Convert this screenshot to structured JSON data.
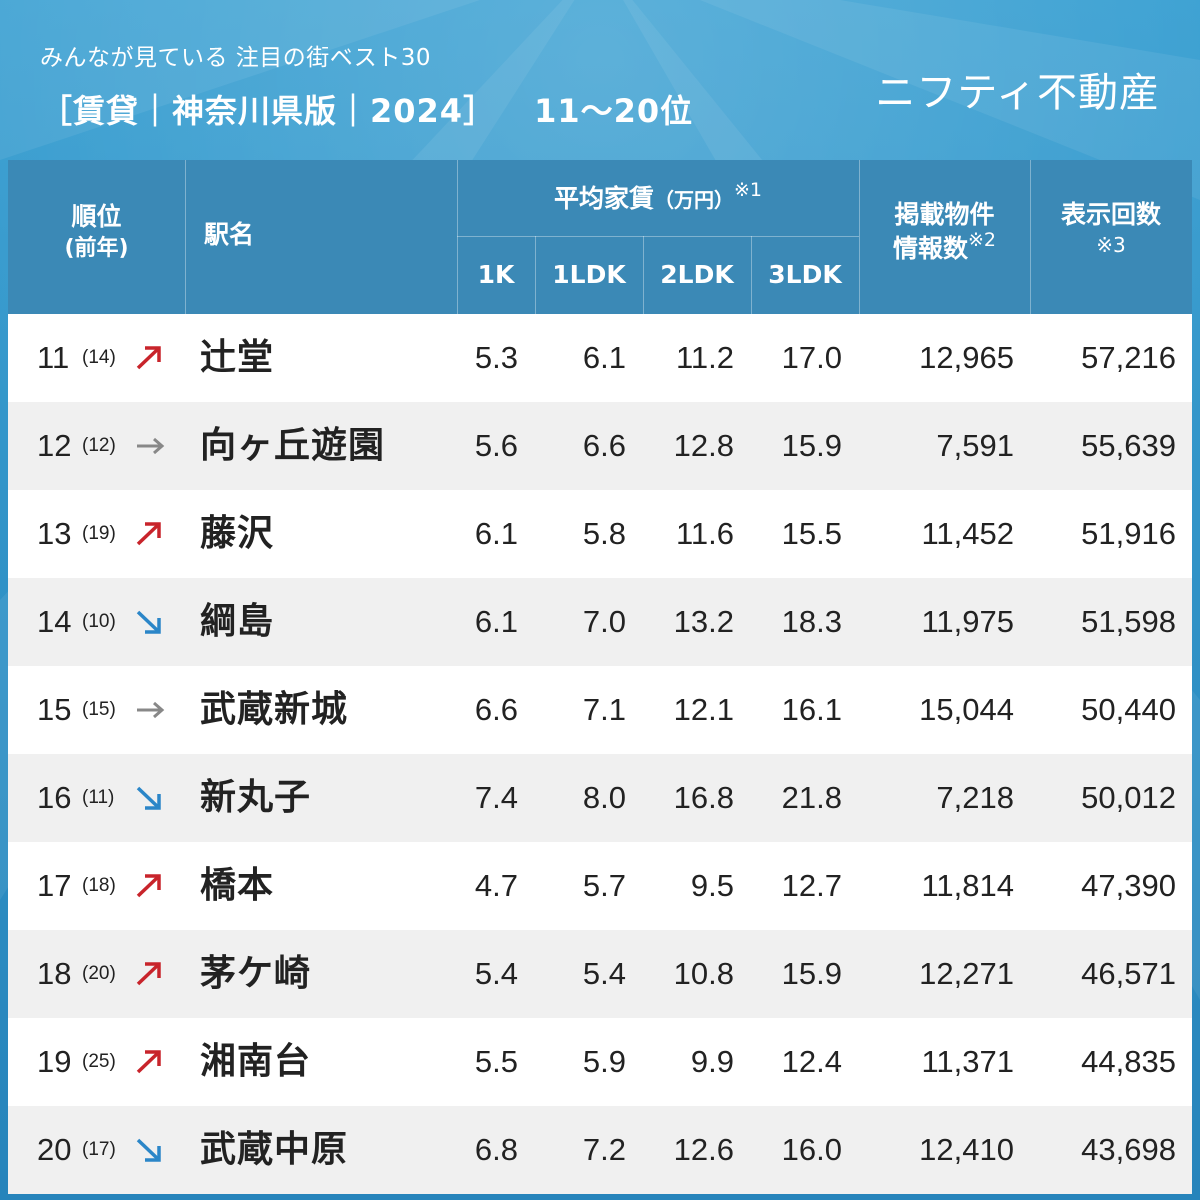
{
  "header": {
    "subtitle": "みんなが見ている 注目の街ベスト30",
    "title": "［賃貸｜神奈川県版｜2024］",
    "rank_range": "11〜20位",
    "brand": "ニフティ不動産"
  },
  "table": {
    "headers": {
      "rank": "順位",
      "rank_prev": "(前年)",
      "station": "駅名",
      "rent_title": "平均家賃",
      "rent_unit": "（万円）",
      "rent_note": "※1",
      "rent_cols": [
        "1K",
        "1LDK",
        "2LDK",
        "3LDK"
      ],
      "listings_line1": "掲載物件",
      "listings_line2": "情報数",
      "listings_note": "※2",
      "views": "表示回数",
      "views_note": "※3"
    },
    "rows": [
      {
        "rank": "11",
        "prev": "(14)",
        "trend": "up",
        "station": "辻堂",
        "k1": "5.3",
        "ldk1": "6.1",
        "ldk2": "11.2",
        "ldk3": "17.0",
        "listings": "12,965",
        "views": "57,216"
      },
      {
        "rank": "12",
        "prev": "(12)",
        "trend": "same",
        "station": "向ヶ丘遊園",
        "k1": "5.6",
        "ldk1": "6.6",
        "ldk2": "12.8",
        "ldk3": "15.9",
        "listings": "7,591",
        "views": "55,639"
      },
      {
        "rank": "13",
        "prev": "(19)",
        "trend": "up",
        "station": "藤沢",
        "k1": "6.1",
        "ldk1": "5.8",
        "ldk2": "11.6",
        "ldk3": "15.5",
        "listings": "11,452",
        "views": "51,916"
      },
      {
        "rank": "14",
        "prev": "(10)",
        "trend": "down",
        "station": "綱島",
        "k1": "6.1",
        "ldk1": "7.0",
        "ldk2": "13.2",
        "ldk3": "18.3",
        "listings": "11,975",
        "views": "51,598"
      },
      {
        "rank": "15",
        "prev": "(15)",
        "trend": "same",
        "station": "武蔵新城",
        "k1": "6.6",
        "ldk1": "7.1",
        "ldk2": "12.1",
        "ldk3": "16.1",
        "listings": "15,044",
        "views": "50,440"
      },
      {
        "rank": "16",
        "prev": "(11)",
        "trend": "down",
        "station": "新丸子",
        "k1": "7.4",
        "ldk1": "8.0",
        "ldk2": "16.8",
        "ldk3": "21.8",
        "listings": "7,218",
        "views": "50,012"
      },
      {
        "rank": "17",
        "prev": "(18)",
        "trend": "up",
        "station": "橋本",
        "k1": "4.7",
        "ldk1": "5.7",
        "ldk2": "9.5",
        "ldk3": "12.7",
        "listings": "11,814",
        "views": "47,390"
      },
      {
        "rank": "18",
        "prev": "(20)",
        "trend": "up",
        "station": "茅ケ崎",
        "k1": "5.4",
        "ldk1": "5.4",
        "ldk2": "10.8",
        "ldk3": "15.9",
        "listings": "12,271",
        "views": "46,571"
      },
      {
        "rank": "19",
        "prev": "(25)",
        "trend": "up",
        "station": "湘南台",
        "k1": "5.5",
        "ldk1": "5.9",
        "ldk2": "9.9",
        "ldk3": "12.4",
        "listings": "11,371",
        "views": "44,835"
      },
      {
        "rank": "20",
        "prev": "(17)",
        "trend": "down",
        "station": "武蔵中原",
        "k1": "6.8",
        "ldk1": "7.2",
        "ldk2": "12.6",
        "ldk3": "16.0",
        "listings": "12,410",
        "views": "43,698"
      }
    ]
  },
  "colors": {
    "up": "#c8242b",
    "down": "#2b86c8",
    "same": "#888888",
    "header_bg": "#3b89b6"
  }
}
